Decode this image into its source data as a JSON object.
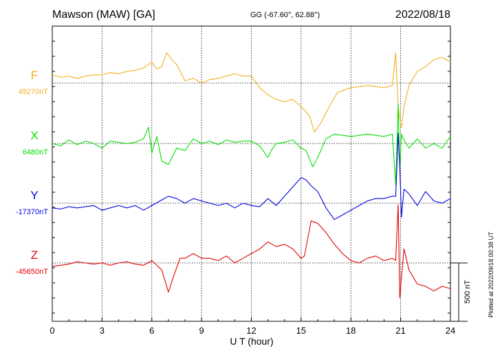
{
  "header": {
    "station": "Mawson (MAW)  [GA]",
    "coords": "GG (-67.60°,  62.88°)",
    "date": "2022/08/18"
  },
  "plot_stamp": "Plotted at 2022/09/18 00:38 UT",
  "scale_label": "500 nT",
  "colors": {
    "F": "#f0b020",
    "X": "#00e000",
    "Y": "#0000e0",
    "Z": "#e00000",
    "axis": "#000000"
  },
  "chart_data": {
    "type": "line",
    "xlabel": "U T (hour)",
    "xlim": [
      0,
      24
    ],
    "x_ticks": [
      "0",
      "3",
      "6",
      "9",
      "12",
      "15",
      "18",
      "21",
      "24"
    ],
    "grid": true,
    "scale_bar_nT": 500,
    "series": [
      {
        "name": "F",
        "baseline_label": "49270nT",
        "baseline_nT": 49270,
        "x": [
          0,
          0.5,
          1,
          1.5,
          2,
          2.5,
          3,
          3.5,
          4,
          4.5,
          5,
          5.5,
          6,
          6.3,
          6.6,
          6.9,
          7.2,
          7.5,
          8,
          8.5,
          9,
          9.5,
          10,
          10.5,
          11,
          11.5,
          12,
          12.5,
          13,
          13.5,
          14,
          14.5,
          15,
          15.5,
          15.8,
          16.2,
          16.7,
          17.2,
          18,
          19,
          20,
          20.5,
          20.7,
          20.85,
          20.95,
          21.05,
          21.2,
          21.5,
          22,
          22.5,
          23,
          23.5,
          24
        ],
        "y": [
          70,
          50,
          60,
          40,
          60,
          70,
          70,
          90,
          80,
          100,
          110,
          130,
          180,
          120,
          140,
          260,
          200,
          160,
          20,
          40,
          0,
          30,
          40,
          60,
          80,
          60,
          60,
          -40,
          -100,
          -140,
          -160,
          -140,
          -200,
          -280,
          -420,
          -340,
          -200,
          -80,
          -40,
          -20,
          -40,
          -20,
          260,
          -200,
          -300,
          -380,
          -200,
          -20,
          100,
          140,
          200,
          220,
          180
        ]
      },
      {
        "name": "X",
        "baseline_label": "6480nT",
        "baseline_nT": 6480,
        "x": [
          0,
          0.5,
          1,
          1.5,
          2,
          2.5,
          3,
          3.5,
          4,
          4.5,
          5,
          5.5,
          5.8,
          6,
          6.3,
          6.6,
          7,
          7.5,
          8,
          8.5,
          9,
          9.5,
          10,
          10.5,
          11,
          11.5,
          12,
          12.5,
          13,
          13.2,
          13.5,
          14,
          14.5,
          15,
          15.3,
          15.7,
          16,
          16.5,
          17,
          18,
          19,
          20,
          20.5,
          20.7,
          20.85,
          20.95,
          21.05,
          21.2,
          21.5,
          22,
          22.5,
          23,
          23.5,
          24
        ],
        "y": [
          0,
          -20,
          30,
          -10,
          20,
          0,
          -40,
          20,
          10,
          0,
          10,
          40,
          140,
          -80,
          60,
          -150,
          -180,
          -40,
          -60,
          40,
          0,
          20,
          -10,
          30,
          10,
          20,
          20,
          -20,
          -120,
          -60,
          0,
          10,
          30,
          -40,
          -60,
          -200,
          -120,
          40,
          80,
          60,
          80,
          60,
          80,
          -360,
          340,
          -200,
          80,
          30,
          -40,
          40,
          -40,
          0,
          -40,
          60
        ]
      },
      {
        "name": "Y",
        "baseline_label": "-17370nT",
        "baseline_nT": -17370,
        "x": [
          0,
          0.5,
          1,
          1.5,
          2,
          2.5,
          3,
          3.5,
          4,
          4.5,
          5,
          5.5,
          6,
          6.5,
          7,
          7.5,
          8,
          8.5,
          9,
          9.5,
          10,
          10.5,
          11,
          11.5,
          12,
          12.5,
          13,
          13.5,
          14,
          14.5,
          15,
          15.3,
          15.6,
          16,
          16.5,
          17,
          17.5,
          18,
          18.5,
          19,
          19.5,
          20,
          20.5,
          20.7,
          20.85,
          20.95,
          21.05,
          21.2,
          21.5,
          22,
          22.5,
          23,
          23.5,
          24
        ],
        "y": [
          -40,
          -50,
          -30,
          -40,
          -30,
          -20,
          -60,
          -40,
          -20,
          -40,
          -20,
          -60,
          -20,
          20,
          60,
          40,
          0,
          40,
          20,
          0,
          -20,
          0,
          -40,
          0,
          -20,
          -30,
          40,
          -20,
          60,
          140,
          220,
          200,
          150,
          100,
          -40,
          -140,
          -100,
          -60,
          -20,
          20,
          40,
          40,
          60,
          60,
          600,
          300,
          -120,
          120,
          80,
          -20,
          100,
          20,
          0,
          40
        ]
      },
      {
        "name": "Z",
        "baseline_label": "-45650nT",
        "baseline_nT": -45650,
        "x": [
          0,
          0.5,
          1,
          1.5,
          2,
          2.5,
          3,
          3.5,
          4,
          4.5,
          5,
          5.5,
          6,
          6.3,
          6.6,
          7,
          7.3,
          7.7,
          8,
          8.5,
          9,
          9.5,
          10,
          10.5,
          11,
          11.5,
          12,
          12.5,
          13,
          13.5,
          14,
          14.5,
          15,
          15.2,
          15.6,
          16,
          16.5,
          17,
          17.5,
          18,
          18.5,
          19,
          19.5,
          20,
          20.5,
          20.7,
          20.85,
          20.95,
          21.05,
          21.2,
          21.5,
          22,
          22.5,
          23,
          23.5,
          24
        ],
        "y": [
          -30,
          -20,
          -10,
          10,
          0,
          -10,
          0,
          -20,
          0,
          10,
          -10,
          -20,
          20,
          -20,
          -60,
          -250,
          -120,
          40,
          40,
          80,
          40,
          40,
          20,
          60,
          0,
          40,
          80,
          120,
          180,
          140,
          160,
          120,
          40,
          60,
          360,
          340,
          260,
          160,
          80,
          20,
          0,
          40,
          60,
          20,
          40,
          20,
          500,
          -300,
          -120,
          120,
          -60,
          -180,
          -200,
          -240,
          -200,
          -220
        ]
      }
    ]
  }
}
